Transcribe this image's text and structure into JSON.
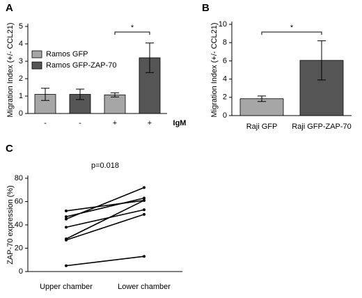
{
  "chart_data": [
    {
      "type": "bar",
      "panel_label": "A",
      "ylabel": "Migration Index (+/- CCL21)",
      "categories": [
        "-",
        "-",
        "+",
        "+"
      ],
      "x_annotation": "IgM",
      "significance": "*",
      "series": [
        {
          "name": "Ramos GFP",
          "color": "#a6a6a6",
          "values": [
            1.1,
            null,
            1.07,
            null
          ],
          "errors": [
            0.35,
            null,
            0.12,
            null
          ]
        },
        {
          "name": "Ramos GFP-ZAP-70",
          "color": "#555555",
          "values": [
            null,
            1.1,
            null,
            3.2
          ],
          "errors": [
            null,
            0.3,
            null,
            0.85
          ]
        }
      ],
      "ylim": [
        0,
        5
      ],
      "yticks": [
        0,
        1,
        2,
        3,
        4,
        5
      ],
      "legend": "upper-left"
    },
    {
      "type": "bar",
      "panel_label": "B",
      "ylabel": "Migration Index (+/- CCL21)",
      "categories": [
        "Raji GFP",
        "Raji GFP-ZAP-70"
      ],
      "significance": "*",
      "values": [
        1.85,
        6.05
      ],
      "errors": [
        0.3,
        2.15
      ],
      "colors": [
        "#a6a6a6",
        "#555555"
      ],
      "ylim": [
        0,
        10
      ],
      "yticks": [
        0,
        2,
        4,
        6,
        8,
        10
      ]
    },
    {
      "type": "line",
      "panel_label": "C",
      "title": "p=0.018",
      "ylabel": "ZAP-70 expression (%)",
      "categories": [
        "Upper chamber",
        "Lower chamber"
      ],
      "color": "#000000",
      "series": [
        {
          "values": [
            52,
            61
          ]
        },
        {
          "values": [
            47,
            63
          ]
        },
        {
          "values": [
            45,
            72
          ]
        },
        {
          "values": [
            38,
            53
          ]
        },
        {
          "values": [
            28,
            61
          ]
        },
        {
          "values": [
            27,
            49
          ]
        },
        {
          "values": [
            5,
            13
          ]
        }
      ],
      "ylim": [
        0,
        80
      ],
      "yticks": [
        0,
        20,
        40,
        60,
        80
      ]
    }
  ]
}
